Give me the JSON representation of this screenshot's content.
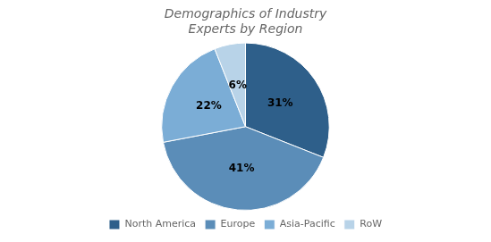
{
  "chart_data": {
    "type": "pie",
    "title": [
      "Demographics of Industry",
      "Experts by Region"
    ],
    "categories": [
      "North America",
      "Europe",
      "Asia-Pacific",
      "RoW"
    ],
    "values": [
      31,
      41,
      22,
      6
    ],
    "value_labels": [
      "31%",
      "41%",
      "22%",
      "6%"
    ],
    "colors": [
      "#2E5F8A",
      "#5B8DB8",
      "#7BADD6",
      "#B8D3E8"
    ],
    "data_labels": true,
    "legend": "bottom"
  }
}
